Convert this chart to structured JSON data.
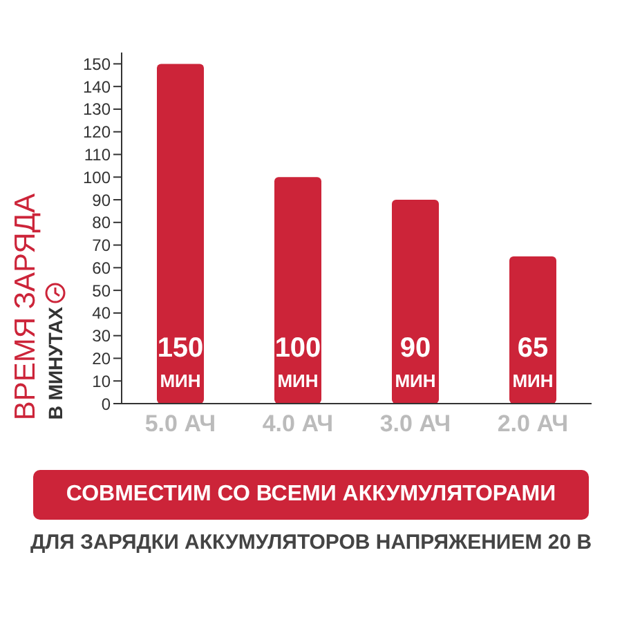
{
  "chart_data": {
    "type": "bar",
    "ylabel": "ВРЕМЯ ЗАРЯДА",
    "categories": [
      "5.0 АЧ",
      "4.0 АЧ",
      "3.0 АЧ",
      "2.0 АЧ"
    ],
    "values": [
      150,
      100,
      90,
      65
    ],
    "value_labels": [
      "150 МИН",
      "100 МИН",
      "90 МИН",
      "65 МИН"
    ],
    "color": "#cc2439",
    "ylim": [
      0,
      155
    ],
    "yticks": [
      0,
      10,
      20,
      30,
      40,
      50,
      60,
      70,
      80,
      90,
      100,
      110,
      120,
      130,
      140,
      150
    ],
    "grid": false,
    "annotations": [
      "В МИНУТАХ",
      "СОВМЕСТИМ СО ВСЕМИ АККУМУЛЯТОРАМИ",
      "ДЛЯ ЗАРЯДКИ АККУМУЛЯТОРОВ НАПРЯЖЕНИЕМ 20 В"
    ]
  }
}
